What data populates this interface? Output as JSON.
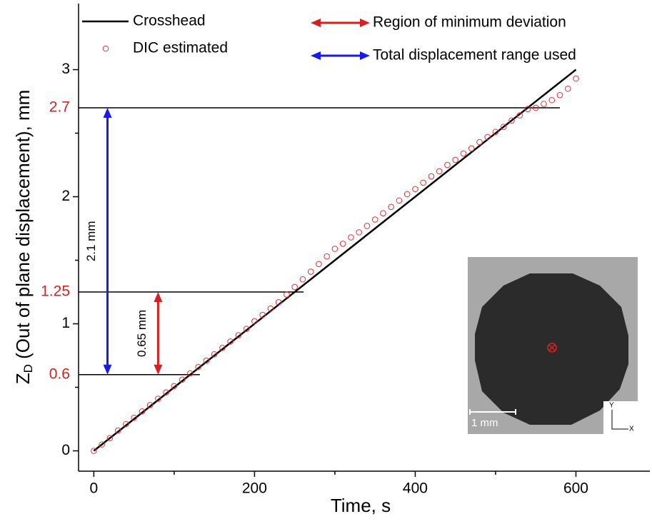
{
  "chart_data": {
    "type": "line",
    "xlabel": "Time, s",
    "ylabel": [
      "Z",
      "D",
      " (Out of plane displacement), mm"
    ],
    "xlim": [
      -19,
      692
    ],
    "ylim": [
      -0.16,
      3.52
    ],
    "xticks": [
      0,
      200,
      400,
      600
    ],
    "xminor": [
      100,
      300,
      500
    ],
    "yticks": [
      0,
      1,
      2,
      3
    ],
    "yminor": [
      0.5,
      1.5,
      2.5
    ],
    "levels": {
      "color": "#d42020",
      "values": [
        0.6,
        1.25,
        2.7
      ],
      "ends": [
        132,
        261,
        580
      ]
    },
    "series": [
      {
        "name": "Crosshead",
        "color": "#000000",
        "marker": "none",
        "x": [
          0,
          600
        ],
        "values": [
          0,
          3
        ]
      },
      {
        "name": "DIC estimated",
        "color": "#e03030",
        "marker": "open-circle",
        "x": [
          0,
          10,
          20,
          30,
          40,
          50,
          60,
          70,
          80,
          90,
          100,
          110,
          120,
          130,
          140,
          150,
          160,
          170,
          180,
          190,
          200,
          210,
          220,
          230,
          240,
          250,
          260,
          270,
          280,
          290,
          300,
          310,
          320,
          330,
          340,
          350,
          360,
          370,
          380,
          390,
          400,
          410,
          420,
          430,
          440,
          450,
          460,
          470,
          480,
          490,
          500,
          510,
          520,
          530,
          540,
          550,
          560,
          570,
          580,
          590,
          600
        ],
        "values": [
          0.0,
          0.05,
          0.1,
          0.16,
          0.21,
          0.26,
          0.31,
          0.36,
          0.41,
          0.46,
          0.51,
          0.56,
          0.61,
          0.66,
          0.71,
          0.76,
          0.81,
          0.86,
          0.91,
          0.96,
          1.02,
          1.07,
          1.12,
          1.17,
          1.23,
          1.29,
          1.35,
          1.41,
          1.47,
          1.53,
          1.59,
          1.63,
          1.68,
          1.72,
          1.77,
          1.82,
          1.87,
          1.92,
          1.97,
          2.02,
          2.06,
          2.11,
          2.16,
          2.2,
          2.25,
          2.29,
          2.34,
          2.38,
          2.43,
          2.47,
          2.51,
          2.55,
          2.6,
          2.64,
          2.69,
          2.7,
          2.73,
          2.76,
          2.8,
          2.85,
          2.93
        ]
      }
    ],
    "ranges": [
      {
        "name": "Region of minimum deviation",
        "color": "#d42020",
        "x": 80,
        "from": 0.6,
        "to": 1.25,
        "label": "0.65 mm"
      },
      {
        "name": "Total displacement range used",
        "color": "#1a1aee",
        "x": 17,
        "from": 0.6,
        "to": 2.7,
        "label": "2.1 mm"
      }
    ],
    "inset": {
      "scale_label": "1 mm",
      "axis_labels": [
        "Y",
        "X"
      ]
    }
  }
}
